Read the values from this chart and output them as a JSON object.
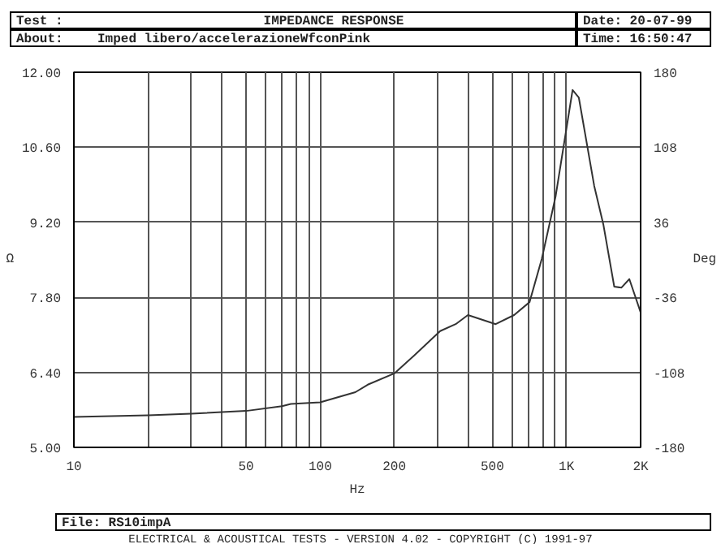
{
  "chart_data": {
    "type": "line",
    "title": "IMPEDANCE RESPONSE",
    "subtitle": "Imped libero/accelerazioneWfconPink",
    "xlabel": "Hz",
    "ylabel": "Ω",
    "y2label": "Deg",
    "annotations": [
      "Test :",
      "About:",
      "Date: 20-07-99",
      "Time: 16:50:47",
      "File: RS10impA",
      "ELECTRICAL & ACOUSTICAL TESTS  -  VERSION 4.02  -  COPYRIGHT (C) 1991-97"
    ],
    "log": "x",
    "grid": true,
    "xlim": [
      10,
      2000
    ],
    "ylim": [
      5,
      12
    ],
    "y2lim": [
      -180,
      180
    ],
    "xticks": [
      10,
      {
        "value": 20,
        "label": null
      },
      {
        "value": 30,
        "label": null
      },
      {
        "value": 40,
        "label": null
      },
      50,
      {
        "value": 60,
        "label": null
      },
      {
        "value": 70,
        "label": null
      },
      {
        "value": 80,
        "label": null
      },
      {
        "value": 90,
        "label": null
      },
      100,
      200,
      {
        "value": 300,
        "label": null
      },
      {
        "value": 400,
        "label": null
      },
      500,
      {
        "value": 600,
        "label": null
      },
      {
        "value": 700,
        "label": null
      },
      {
        "value": 800,
        "label": null
      },
      {
        "value": 900,
        "label": null
      },
      {
        "value": 1000,
        "label": "1K"
      },
      {
        "value": 2000,
        "label": "2K"
      }
    ],
    "yticks": [
      {
        "value": 5,
        "label": "5.00"
      },
      {
        "value": 6.4,
        "label": "6.40"
      },
      {
        "value": 7.8,
        "label": "7.80"
      },
      {
        "value": 9.2,
        "label": "9.20"
      },
      {
        "value": 10.6,
        "label": "10.60"
      },
      {
        "value": 12,
        "label": "12.00"
      }
    ],
    "y2ticks": [
      -180,
      -108,
      -36,
      36,
      108,
      180
    ],
    "series": [
      {
        "color": "#333333",
        "x": [
          10,
          20,
          30,
          50,
          70,
          76,
          100,
          139,
          156,
          200,
          240,
          307,
          355,
          398,
          516,
          613,
          708,
          794,
          904,
          1059,
          1122,
          1296,
          1413,
          1563,
          1670,
          1800,
          2000
        ],
        "values": [
          5.57,
          5.6,
          5.63,
          5.68,
          5.77,
          5.81,
          5.84,
          6.03,
          6.17,
          6.38,
          6.71,
          7.17,
          7.3,
          7.47,
          7.3,
          7.47,
          7.71,
          8.52,
          9.69,
          11.67,
          11.53,
          9.88,
          9.15,
          8.0,
          7.98,
          8.14,
          7.52
        ]
      }
    ]
  }
}
